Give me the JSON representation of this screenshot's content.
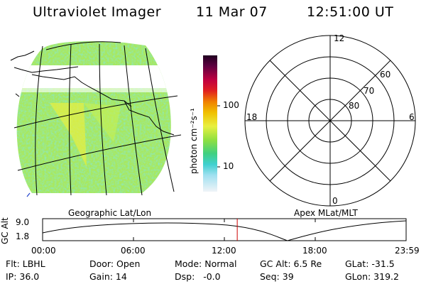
{
  "header": {
    "title": "Ultraviolet Imager",
    "date": "11 Mar 07",
    "time": "12:51:00 UT"
  },
  "colorbar": {
    "label": "photon cm⁻²s⁻¹",
    "scale": "log",
    "range": [
      3,
      300
    ],
    "ticks": [
      {
        "value": 100,
        "label": "100"
      },
      {
        "value": 10,
        "label": "10"
      }
    ]
  },
  "geo_panel": {
    "label": "Geographic Lat/Lon"
  },
  "polar_panel": {
    "label": "Apex MLat/MLT",
    "mlt_labels": {
      "top": "12",
      "left": "18",
      "right": "6",
      "bottom": "0"
    },
    "mlat_labels": [
      "60",
      "70",
      "80"
    ]
  },
  "timeline": {
    "ylabel": "GC Alt",
    "ytick_top": "9.0",
    "ytick_bottom": "1.8",
    "xticks": [
      "00:00",
      "06:00",
      "12:00",
      "18:00",
      "23:59"
    ],
    "current_time_hours": 12.85,
    "marker_color": "#cc0000"
  },
  "info": {
    "flt": "Flt: LBHL",
    "ip": "IP: 36.0",
    "door": "Door: Open",
    "gain": "Gain: 14",
    "mode": "Mode: Normal",
    "dsp": "Dsp:   -0.0",
    "gcalt": "GC Alt: 6.5 Re",
    "seq": "Seq: 39",
    "glat": "GLat: -31.5",
    "glon": "GLon: 319.2"
  }
}
